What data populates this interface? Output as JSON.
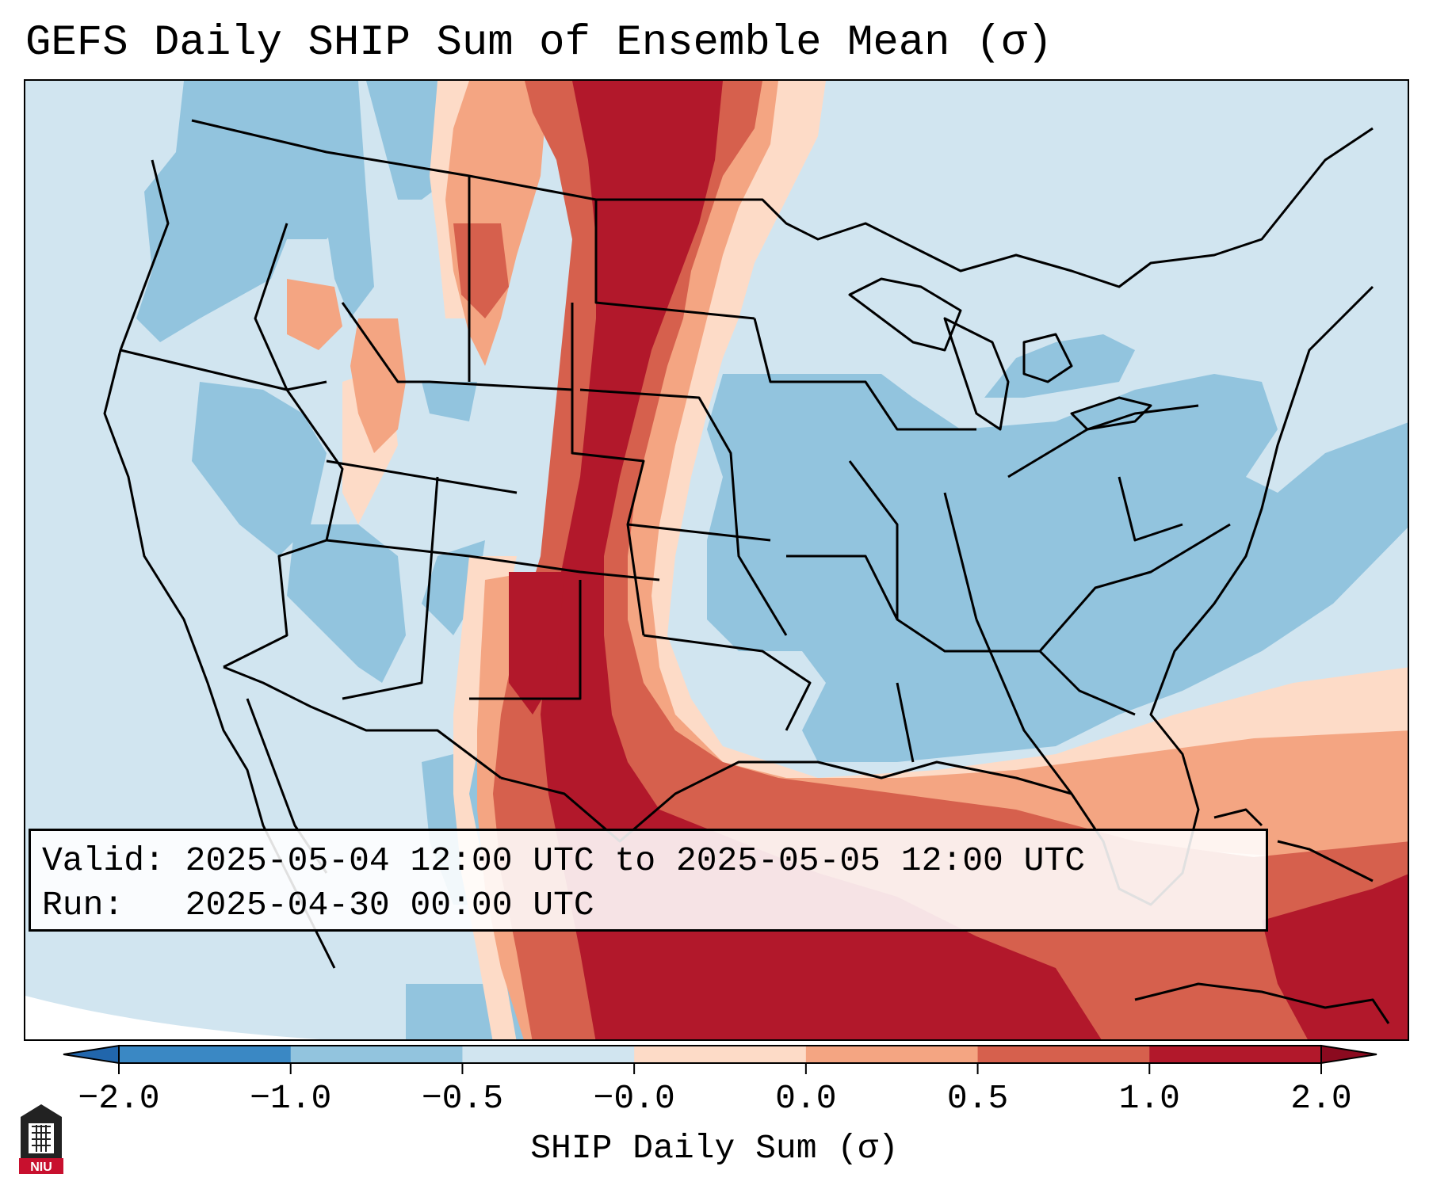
{
  "title": "GEFS Daily SHIP Sum of Ensemble Mean (σ)",
  "info": {
    "valid_label": "Valid:",
    "valid_value": "2025-05-04 12:00 UTC to 2025-05-05 12:00 UTC",
    "run_label": "Run:",
    "run_value": "2025-04-30 00:00 UTC"
  },
  "colorbar": {
    "label": "SHIP Daily Sum (σ)",
    "tick_labels": [
      "−2.0",
      "−1.0",
      "−0.5",
      "−0.0",
      "0.0",
      "0.5",
      "1.0",
      "2.0"
    ],
    "colors": [
      "#3a88c4",
      "#92c4de",
      "#d1e5f0",
      "#f6f6f6",
      "#fddbc7",
      "#f4a582",
      "#d6604d",
      "#b2182b"
    ],
    "extend": "both"
  },
  "logo": {
    "text": "NIU",
    "color": "#c8102e"
  },
  "map": {
    "ocean_color": "#d1e5f0",
    "outside_color": "#ffffff"
  }
}
